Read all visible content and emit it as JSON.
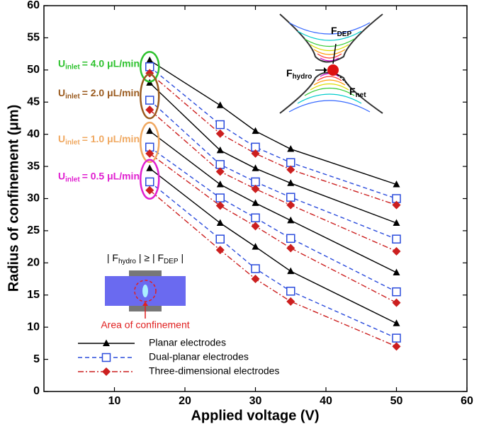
{
  "chart_data": {
    "type": "line",
    "x_label": "Applied voltage (V)",
    "y_label": "Radius of confinement (μm)",
    "x": [
      15,
      25,
      30,
      35,
      50
    ],
    "xlim": [
      0,
      60
    ],
    "xticks": [
      10,
      20,
      30,
      40,
      50,
      60
    ],
    "ylim": [
      0,
      60
    ],
    "yticks": [
      0,
      5,
      10,
      15,
      20,
      25,
      30,
      35,
      40,
      45,
      50,
      55,
      60
    ],
    "legend": "lower left",
    "series": [
      {
        "name": "Planar electrodes",
        "color": "#000000",
        "marker": "triangle",
        "dash": "solid",
        "values": [
          [
            51.5,
            44.5,
            40.5,
            37.7,
            32.2
          ],
          [
            48.0,
            37.5,
            34.7,
            32.4,
            26.2
          ],
          [
            40.5,
            32.2,
            29.3,
            26.6,
            18.5
          ],
          [
            34.7,
            26.2,
            22.5,
            18.7,
            10.6
          ]
        ]
      },
      {
        "name": "Dual-planar electrodes",
        "color": "#2a4bdc",
        "marker": "square",
        "dash": "dashed",
        "values": [
          [
            50.5,
            41.5,
            38.0,
            35.6,
            30.0
          ],
          [
            45.3,
            35.3,
            32.6,
            30.2,
            23.7
          ],
          [
            38.0,
            30.1,
            27.0,
            23.8,
            15.5
          ],
          [
            32.6,
            23.7,
            19.1,
            15.6,
            8.3
          ]
        ]
      },
      {
        "name": "Three-dimensional electrodes",
        "color": "#cc1f1f",
        "marker": "diamond",
        "dash": "dashdot",
        "values": [
          [
            49.5,
            40.1,
            37.0,
            34.5,
            29.0
          ],
          [
            43.8,
            34.2,
            31.5,
            29.0,
            21.8
          ],
          [
            37.0,
            28.9,
            25.7,
            22.3,
            13.8
          ],
          [
            31.3,
            22.0,
            17.5,
            14.0,
            7.0
          ]
        ]
      }
    ],
    "groups": [
      {
        "symbol": "U",
        "sub": "inlet",
        "text": "= 4.0 μL/min",
        "color": "#2ec22e"
      },
      {
        "symbol": "U",
        "sub": "inlet",
        "text": "= 2.0 μL/min",
        "color": "#9a5a1e"
      },
      {
        "symbol": "U",
        "sub": "inlet",
        "text": "= 1.0 μL/min",
        "color": "#f0a860"
      },
      {
        "symbol": "U",
        "sub": "inlet",
        "text": "= 0.5 μL/min",
        "color": "#e020d0"
      }
    ],
    "force_inset": {
      "dep": [
        "F",
        "DEP"
      ],
      "hydro": [
        "F",
        "hydro"
      ],
      "net": [
        "F",
        "net"
      ]
    },
    "confinement_inset": {
      "condition": [
        "| F",
        "hydro",
        " | ≥ | F",
        "DEP",
        " |"
      ],
      "area_label": "Area of confinement"
    }
  }
}
